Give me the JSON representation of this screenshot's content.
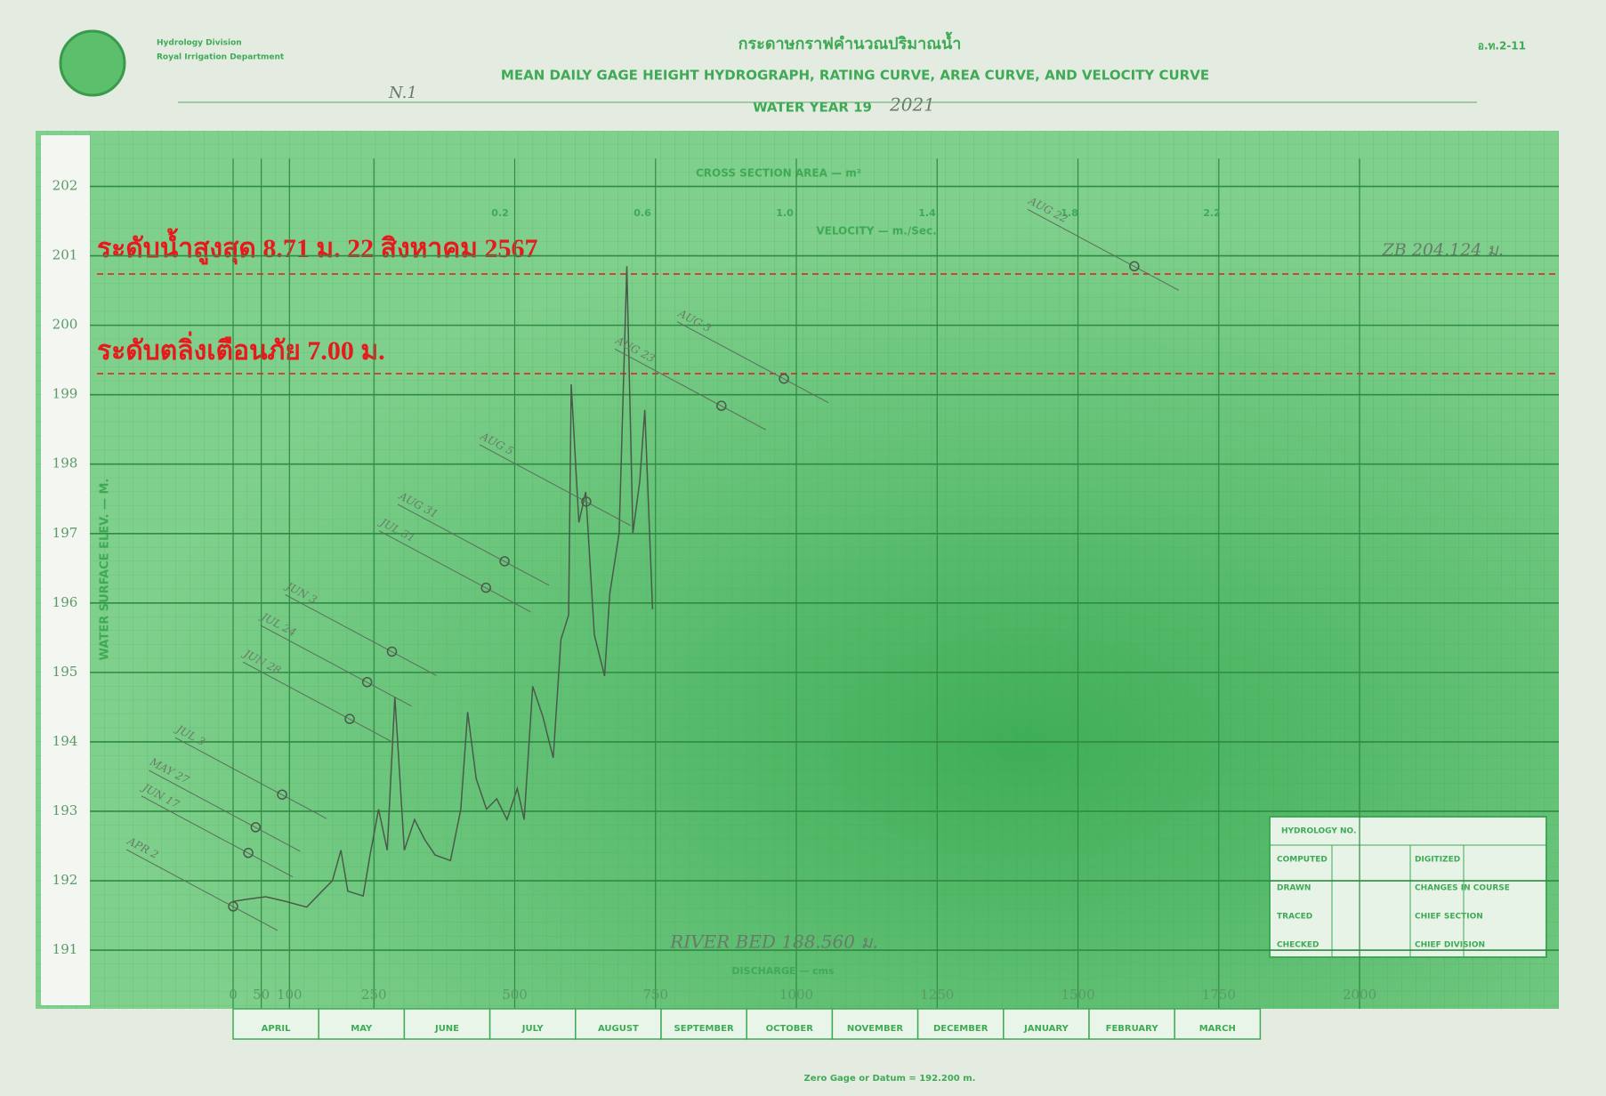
{
  "header": {
    "agency": "Hydrology Division",
    "department": "Royal Irrigation Department",
    "form_code": "อ.ท.2-11",
    "title_thai": "กระดาษกราฟคำนวณปริมาณน้ำ",
    "title": "MEAN DAILY GAGE HEIGHT HYDROGRAPH, RATING CURVE, AREA CURVE, AND VELOCITY CURVE",
    "water_year_label": "WATER YEAR 19",
    "water_year": "2021",
    "station": "N.1"
  },
  "chart_data": {
    "type": "line",
    "ylabel": "WATER SURFACE ELEV. — M.",
    "ylim": [
      190.3,
      202.4
    ],
    "yticks": [
      191,
      192,
      193,
      194,
      195,
      196,
      197,
      198,
      199,
      200,
      201,
      202
    ],
    "categories": [
      "APRIL",
      "MAY",
      "JUNE",
      "JULY",
      "AUGUST",
      "SEPTEMBER",
      "OCTOBER",
      "NOVEMBER",
      "DECEMBER",
      "JANUARY",
      "FEBRUARY",
      "MARCH"
    ],
    "xlim": [
      0,
      12
    ],
    "x2label": "DISCHARGE — cms",
    "x2lim": [
      0,
      2350
    ],
    "x2ticks": [
      0,
      50,
      100,
      250,
      500,
      750,
      1000,
      1250,
      1500,
      1750,
      2000
    ],
    "area_label": "CROSS SECTION AREA — m²",
    "velocity_label": "VELOCITY — m./Sec.",
    "velocity_ticks": [
      "0.2",
      "0.6",
      "1.0",
      "1.4",
      "1.8",
      "2.2"
    ],
    "series": [
      {
        "name": "Mean daily gage height",
        "color": "#4a5a4a",
        "x": [
          0,
          0.14,
          0.38,
          0.62,
          0.86,
          1.04,
          1.16,
          1.26,
          1.34,
          1.52,
          1.6,
          1.7,
          1.8,
          1.89,
          2.0,
          2.12,
          2.24,
          2.36,
          2.54,
          2.66,
          2.74,
          2.84,
          2.96,
          3.08,
          3.2,
          3.32,
          3.4,
          3.5,
          3.62,
          3.74,
          3.83,
          3.92,
          3.95,
          4.04,
          4.12,
          4.22,
          4.34,
          4.4,
          4.51,
          4.6,
          4.67,
          4.75,
          4.81,
          4.9
        ],
        "values": [
          191.7,
          191.73,
          191.77,
          191.7,
          191.62,
          191.85,
          192.0,
          192.44,
          191.85,
          191.78,
          192.37,
          193.03,
          192.44,
          194.65,
          192.44,
          192.88,
          192.59,
          192.37,
          192.29,
          193.03,
          194.43,
          193.47,
          193.03,
          193.18,
          192.88,
          193.33,
          192.88,
          194.8,
          194.36,
          193.77,
          195.47,
          195.83,
          199.15,
          197.16,
          197.6,
          195.54,
          194.95,
          196.13,
          197.01,
          200.85,
          197.01,
          197.75,
          198.78,
          195.91
        ]
      }
    ],
    "measurements": {
      "labels": [
        "APR 2",
        "MAY 27",
        "JUN 17",
        "JUL 3",
        "JUN 28",
        "JUL 24",
        "JUN 3",
        "JUL 31",
        "AUG 31",
        "AUG 5",
        "AUG 23",
        "AUG 3",
        "AUG 22"
      ],
      "discharge": [
        0,
        40,
        27,
        87,
        207,
        238,
        282,
        449,
        482,
        627,
        867,
        978,
        1600
      ],
      "values": [
        191.63,
        192.77,
        192.4,
        193.24,
        194.33,
        194.86,
        195.3,
        196.22,
        196.6,
        197.46,
        198.84,
        199.23,
        200.85
      ]
    },
    "annotations": {
      "max_level": "ระดับน้ำสูงสุด 8.71 ม. 22 สิงหาคม 2567",
      "warning_level": "ระดับตลิ่งเตือนภัย 7.00 ม.",
      "zero_gage": "ZB 204.124 ม.",
      "river_bed": "RIVER BED 188.560 ม.",
      "datum": "Zero Gage or Datum = 192.200 m."
    }
  },
  "form_box": {
    "title": "HYDROLOGY NO.",
    "rows": [
      "COMPUTED",
      "DRAWN",
      "TRACED",
      "CHECKED"
    ],
    "right": [
      "DIGITIZED",
      "CHANGES IN COURSE",
      "CHIEF SECTION",
      "CHIEF DIVISION"
    ]
  }
}
